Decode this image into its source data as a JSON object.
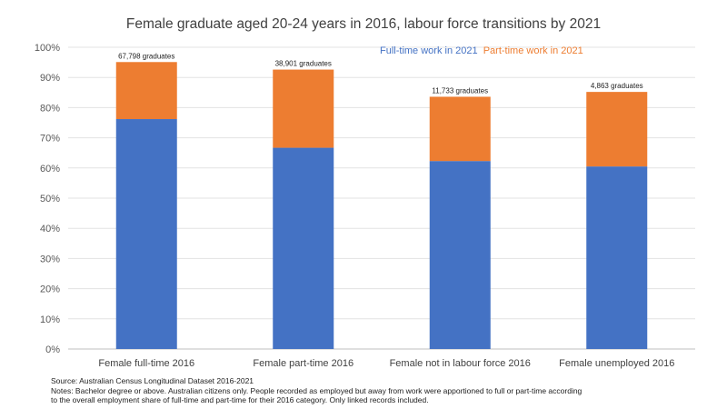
{
  "chart_data": {
    "type": "bar",
    "stacked": true,
    "title": "Female graduate aged 20-24 years in 2016, labour force transitions by 2021",
    "categories": [
      "Female full-time 2016",
      "Female part-time 2016",
      "Female not in labour force 2016",
      "Female unemployed 2016"
    ],
    "series": [
      {
        "name": "Full-time work in 2021",
        "color": "#4472C4",
        "values": [
          76.2,
          66.7,
          62.3,
          60.5
        ]
      },
      {
        "name": "Part-time work in 2021",
        "color": "#ED7D31",
        "values": [
          18.9,
          25.9,
          21.3,
          24.7
        ]
      }
    ],
    "data_labels": [
      "67,798 graduates",
      "38,901 graduates",
      "11,733 graduates",
      "4,863 graduates"
    ],
    "ylim": [
      0,
      100
    ],
    "yticks": [
      "0%",
      "10%",
      "20%",
      "30%",
      "40%",
      "50%",
      "60%",
      "70%",
      "80%",
      "90%",
      "100%"
    ],
    "grid": true,
    "legend": "top-center"
  },
  "notes": {
    "source": "Source: Australian Census Longitudinal Dataset 2016-2021",
    "line1": "Notes: Bachelor degree or above. Australian citizens only. People recorded as employed but away from work were apportioned to full or part-time according",
    "line2": "to the overall employment share of full-time and part-time for their 2016 category.  Only linked records included."
  }
}
